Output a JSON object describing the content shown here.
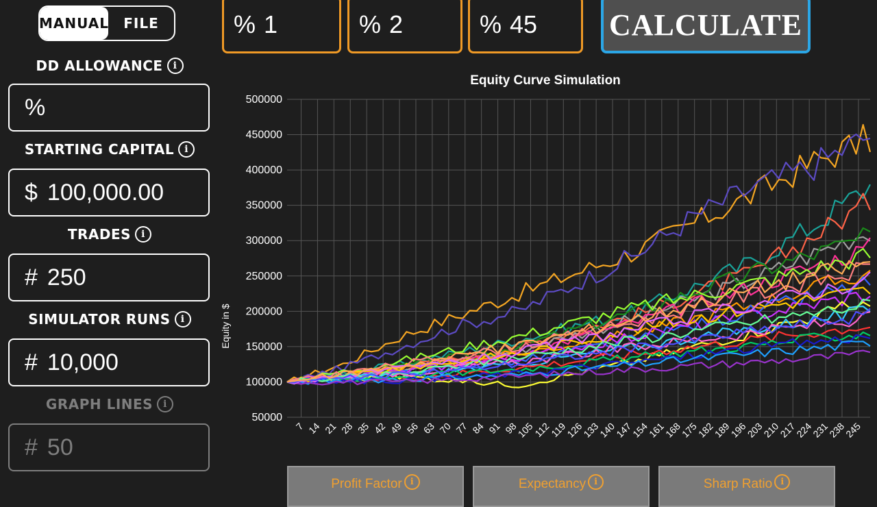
{
  "mode_toggle": {
    "manual_label": "MANUAL",
    "file_label": "FILE",
    "selected": "MANUAL"
  },
  "fields": [
    {
      "label": "DD ALLOWANCE",
      "prefix": "%",
      "value": "",
      "enabled": true
    },
    {
      "label": "STARTING CAPITAL",
      "prefix": "$",
      "value": "100,000.00",
      "enabled": true
    },
    {
      "label": "TRADES",
      "prefix": "#",
      "value": "250",
      "enabled": true
    },
    {
      "label": "SIMULATOR RUNS",
      "prefix": "#",
      "value": "10,000",
      "enabled": true
    },
    {
      "label": "GRAPH LINES",
      "prefix": "#",
      "value": "50",
      "enabled": false
    }
  ],
  "info_glyph": "i",
  "percent_inputs": [
    {
      "prefix": "%",
      "value": "1"
    },
    {
      "prefix": "%",
      "value": "2"
    },
    {
      "prefix": "%",
      "value": "45"
    }
  ],
  "calculate_label": "CALCULATE",
  "metrics_buttons": [
    "Profit Factor",
    "Expectancy",
    "Sharp Ratio"
  ],
  "colors": {
    "background": "#1e1e1e",
    "accent_orange": "#f09a26",
    "accent_blue": "#2ba6e6",
    "metric_text": "#f0a030",
    "disabled": "#7e7e7e"
  },
  "chart_data": {
    "type": "line",
    "title": "Equity Curve Simulation",
    "xlabel": "",
    "ylabel": "Equity in $",
    "ylim": [
      50000,
      500000
    ],
    "yticks": [
      "500000",
      "450000",
      "400000",
      "350000",
      "300000",
      "250000",
      "200000",
      "150000",
      "100000",
      "50000"
    ],
    "xticks": [
      "7",
      "14",
      "21",
      "28",
      "35",
      "42",
      "49",
      "56",
      "63",
      "70",
      "77",
      "84",
      "91",
      "98",
      "105",
      "112",
      "119",
      "126",
      "133",
      "140",
      "147",
      "154",
      "161",
      "168",
      "175",
      "182",
      "189",
      "196",
      "203",
      "210",
      "217",
      "224",
      "231",
      "238",
      "245"
    ],
    "x_range": [
      1,
      250
    ],
    "start_value": 100000,
    "grid": true,
    "legend": "none",
    "series": [
      {
        "color": "#f5a623",
        "end": 445000,
        "points": [
          [
            1,
            100000
          ],
          [
            25,
            125000
          ],
          [
            50,
            165000
          ],
          [
            75,
            195000
          ],
          [
            100,
            225000
          ],
          [
            125,
            255000
          ],
          [
            150,
            285000
          ],
          [
            175,
            325000
          ],
          [
            200,
            365000
          ],
          [
            225,
            410000
          ],
          [
            250,
            445000
          ]
        ]
      },
      {
        "color": "#5c4bc4",
        "end": 450000,
        "points": [
          [
            1,
            100000
          ],
          [
            25,
            120000
          ],
          [
            50,
            150000
          ],
          [
            75,
            180000
          ],
          [
            100,
            200000
          ],
          [
            125,
            240000
          ],
          [
            150,
            280000
          ],
          [
            175,
            335000
          ],
          [
            200,
            375000
          ],
          [
            225,
            405000
          ],
          [
            250,
            450000
          ]
        ]
      },
      {
        "color": "#1aa39a",
        "end": 378000,
        "points": [
          [
            1,
            100000
          ],
          [
            50,
            125000
          ],
          [
            100,
            160000
          ],
          [
            150,
            200000
          ],
          [
            200,
            270000
          ],
          [
            225,
            320000
          ],
          [
            250,
            378000
          ]
        ]
      },
      {
        "color": "#ff6347",
        "end": 355000,
        "points": [
          [
            1,
            100000
          ],
          [
            50,
            120000
          ],
          [
            100,
            150000
          ],
          [
            150,
            195000
          ],
          [
            200,
            255000
          ],
          [
            225,
            305000
          ],
          [
            250,
            355000
          ]
        ]
      },
      {
        "color": "#a0a0a0",
        "end": 315000,
        "points": [
          [
            1,
            100000
          ],
          [
            50,
            118000
          ],
          [
            100,
            145000
          ],
          [
            150,
            190000
          ],
          [
            200,
            245000
          ],
          [
            250,
            315000
          ]
        ]
      },
      {
        "color": "#1a8a1a",
        "end": 305000,
        "points": [
          [
            1,
            100000
          ],
          [
            50,
            122000
          ],
          [
            100,
            150000
          ],
          [
            150,
            200000
          ],
          [
            200,
            255000
          ],
          [
            250,
            305000
          ]
        ]
      },
      {
        "color": "#ff3399",
        "end": 290000,
        "points": [
          [
            1,
            100000
          ],
          [
            50,
            115000
          ],
          [
            100,
            140000
          ],
          [
            150,
            185000
          ],
          [
            200,
            235000
          ],
          [
            250,
            290000
          ]
        ]
      },
      {
        "color": "#99ff33",
        "end": 280000,
        "points": [
          [
            1,
            100000
          ],
          [
            50,
            130000
          ],
          [
            100,
            165000
          ],
          [
            150,
            205000
          ],
          [
            200,
            240000
          ],
          [
            250,
            280000
          ]
        ]
      },
      {
        "color": "#ff9900",
        "end": 255000,
        "points": [
          [
            1,
            100000
          ],
          [
            50,
            118000
          ],
          [
            100,
            140000
          ],
          [
            150,
            170000
          ],
          [
            200,
            210000
          ],
          [
            250,
            255000
          ]
        ]
      },
      {
        "color": "#3366ff",
        "end": 240000,
        "points": [
          [
            1,
            100000
          ],
          [
            50,
            112000
          ],
          [
            100,
            130000
          ],
          [
            150,
            160000
          ],
          [
            200,
            200000
          ],
          [
            250,
            240000
          ]
        ]
      },
      {
        "color": "#cc33ff",
        "end": 225000,
        "points": [
          [
            1,
            100000
          ],
          [
            50,
            115000
          ],
          [
            100,
            135000
          ],
          [
            150,
            165000
          ],
          [
            200,
            195000
          ],
          [
            250,
            225000
          ]
        ]
      },
      {
        "color": "#ffff33",
        "end": 215000,
        "points": [
          [
            1,
            100000
          ],
          [
            50,
            108000
          ],
          [
            100,
            95000
          ],
          [
            150,
            130000
          ],
          [
            200,
            170000
          ],
          [
            250,
            215000
          ]
        ]
      },
      {
        "color": "#33ccff",
        "end": 200000,
        "points": [
          [
            1,
            100000
          ],
          [
            50,
            110000
          ],
          [
            100,
            125000
          ],
          [
            150,
            150000
          ],
          [
            200,
            175000
          ],
          [
            250,
            200000
          ]
        ]
      },
      {
        "color": "#ff66cc",
        "end": 190000,
        "points": [
          [
            1,
            100000
          ],
          [
            50,
            112000
          ],
          [
            100,
            128000
          ],
          [
            150,
            150000
          ],
          [
            200,
            170000
          ],
          [
            250,
            190000
          ]
        ]
      },
      {
        "color": "#ff3333",
        "end": 180000,
        "points": [
          [
            1,
            100000
          ],
          [
            50,
            105000
          ],
          [
            100,
            120000
          ],
          [
            150,
            140000
          ],
          [
            200,
            160000
          ],
          [
            250,
            180000
          ]
        ]
      },
      {
        "color": "#00cc66",
        "end": 170000,
        "points": [
          [
            1,
            100000
          ],
          [
            50,
            108000
          ],
          [
            100,
            118000
          ],
          [
            150,
            135000
          ],
          [
            200,
            152000
          ],
          [
            250,
            170000
          ]
        ]
      },
      {
        "color": "#1a1acc",
        "end": 165000,
        "points": [
          [
            1,
            100000
          ],
          [
            50,
            102000
          ],
          [
            100,
            112000
          ],
          [
            150,
            128000
          ],
          [
            200,
            148000
          ],
          [
            250,
            165000
          ]
        ]
      },
      {
        "color": "#1ea0ff",
        "end": 155000,
        "points": [
          [
            1,
            100000
          ],
          [
            50,
            104000
          ],
          [
            100,
            110000
          ],
          [
            150,
            125000
          ],
          [
            200,
            140000
          ],
          [
            250,
            155000
          ]
        ]
      },
      {
        "color": "#9933cc",
        "end": 140000,
        "points": [
          [
            1,
            100000
          ],
          [
            50,
            100000
          ],
          [
            100,
            108000
          ],
          [
            150,
            118000
          ],
          [
            200,
            128000
          ],
          [
            250,
            140000
          ]
        ]
      },
      {
        "color": "#ffcc00",
        "end": 230000,
        "points": [
          [
            1,
            100000
          ],
          [
            50,
            120000
          ],
          [
            100,
            140000
          ],
          [
            150,
            175000
          ],
          [
            200,
            205000
          ],
          [
            250,
            230000
          ]
        ]
      },
      {
        "color": "#ff8080",
        "end": 260000,
        "points": [
          [
            1,
            100000
          ],
          [
            50,
            125000
          ],
          [
            100,
            150000
          ],
          [
            150,
            185000
          ],
          [
            200,
            225000
          ],
          [
            250,
            260000
          ]
        ]
      },
      {
        "color": "#66ff99",
        "end": 210000,
        "points": [
          [
            1,
            100000
          ],
          [
            50,
            112000
          ],
          [
            100,
            135000
          ],
          [
            150,
            160000
          ],
          [
            200,
            185000
          ],
          [
            250,
            210000
          ]
        ]
      },
      {
        "color": "#e066ff",
        "end": 245000,
        "points": [
          [
            1,
            100000
          ],
          [
            50,
            118000
          ],
          [
            100,
            142000
          ],
          [
            150,
            175000
          ],
          [
            200,
            210000
          ],
          [
            250,
            245000
          ]
        ]
      },
      {
        "color": "#4d4dff",
        "end": 195000,
        "points": [
          [
            1,
            100000
          ],
          [
            50,
            110000
          ],
          [
            100,
            126000
          ],
          [
            150,
            148000
          ],
          [
            200,
            172000
          ],
          [
            250,
            195000
          ]
        ]
      },
      {
        "color": "#ffaa55",
        "end": 270000,
        "points": [
          [
            1,
            100000
          ],
          [
            50,
            123000
          ],
          [
            100,
            152000
          ],
          [
            150,
            190000
          ],
          [
            200,
            232000
          ],
          [
            250,
            270000
          ]
        ]
      }
    ]
  }
}
